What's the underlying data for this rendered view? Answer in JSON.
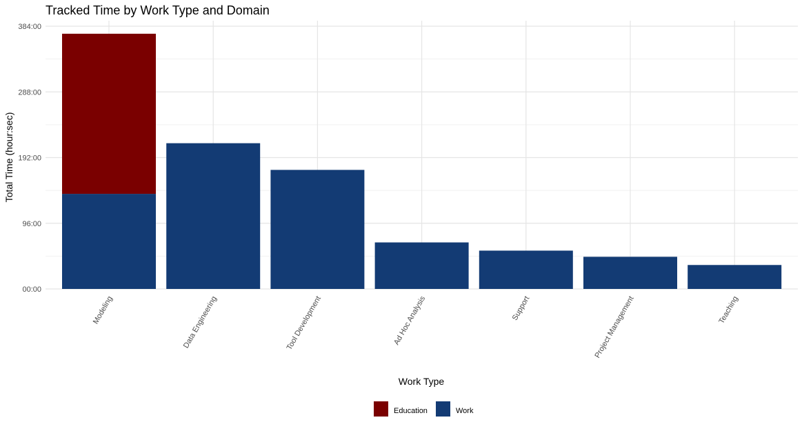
{
  "chart_data": {
    "type": "bar",
    "stacked": true,
    "title": "Tracked Time by Work Type and Domain",
    "xlabel": "Work Type",
    "ylabel": "Total Time (hour:sec)",
    "categories": [
      "Modeling",
      "Data Engineering",
      "Tool Development",
      "Ad Hoc Analysis",
      "Support",
      "Project Management",
      "Teaching"
    ],
    "series": [
      {
        "name": "Work",
        "color": "#133B74",
        "values": [
          139,
          213,
          174,
          68,
          56,
          47,
          35
        ]
      },
      {
        "name": "Education",
        "color": "#7A0000",
        "values": [
          234,
          0,
          0,
          0,
          0,
          0,
          0
        ]
      }
    ],
    "ylim": [
      0,
      384
    ],
    "yticks": [
      0,
      96,
      192,
      288,
      384
    ],
    "ytick_labels": [
      "00:00",
      "96:00",
      "192:00",
      "288:00",
      "384:00"
    ],
    "ymajor_step": 96,
    "yminor_step": 48,
    "grid": true,
    "legend": {
      "position": "bottom",
      "entries": [
        {
          "label": "Education",
          "color": "#7A0000"
        },
        {
          "label": "Work",
          "color": "#133B74"
        }
      ]
    }
  }
}
